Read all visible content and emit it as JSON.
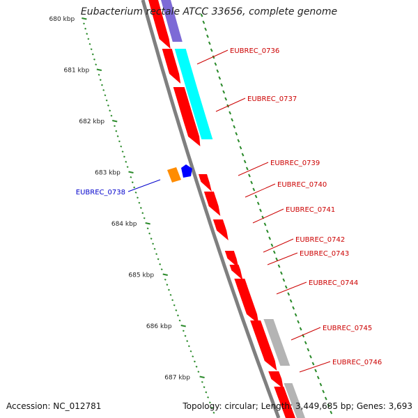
{
  "title": "Eubacterium rectale ATCC 33656, complete genome",
  "footer": {
    "accession": "Accession: NC_012781",
    "topology": "Topology: circular; Length: 3,449,685 bp; Genes: 3,693"
  },
  "colors": {
    "backbone": "#7f7f7f",
    "gene_forward": "#ff0000",
    "gene_reverse_blue": "#0000ff",
    "gene_orange": "#ff8c00",
    "cyan_feature": "#00ffff",
    "purple_feature": "#7d6ad6",
    "gray_feature": "#b4b4b4",
    "tick": "#2a8a2a",
    "label_red": "#cc0000",
    "label_blue": "#0000cc"
  },
  "scale_ticks": [
    {
      "kbp": 680,
      "label": "680 kbp"
    },
    {
      "kbp": 681,
      "label": "681 kbp"
    },
    {
      "kbp": 682,
      "label": "682 kbp"
    },
    {
      "kbp": 683,
      "label": "683 kbp"
    },
    {
      "kbp": 684,
      "label": "684 kbp"
    },
    {
      "kbp": 685,
      "label": "685 kbp"
    },
    {
      "kbp": 686,
      "label": "686 kbp"
    },
    {
      "kbp": 687,
      "label": "687 kbp"
    }
  ],
  "genes": [
    {
      "label": "EUBREC_0736",
      "color": "red"
    },
    {
      "label": "EUBREC_0737",
      "color": "red"
    },
    {
      "label": "EUBREC_0738",
      "color": "blue"
    },
    {
      "label": "EUBREC_0739",
      "color": "red"
    },
    {
      "label": "EUBREC_0740",
      "color": "red"
    },
    {
      "label": "EUBREC_0741",
      "color": "red"
    },
    {
      "label": "EUBREC_0742",
      "color": "red"
    },
    {
      "label": "EUBREC_0743",
      "color": "red"
    },
    {
      "label": "EUBREC_0744",
      "color": "red"
    },
    {
      "label": "EUBREC_0745",
      "color": "red"
    },
    {
      "label": "EUBREC_0746",
      "color": "red"
    }
  ]
}
